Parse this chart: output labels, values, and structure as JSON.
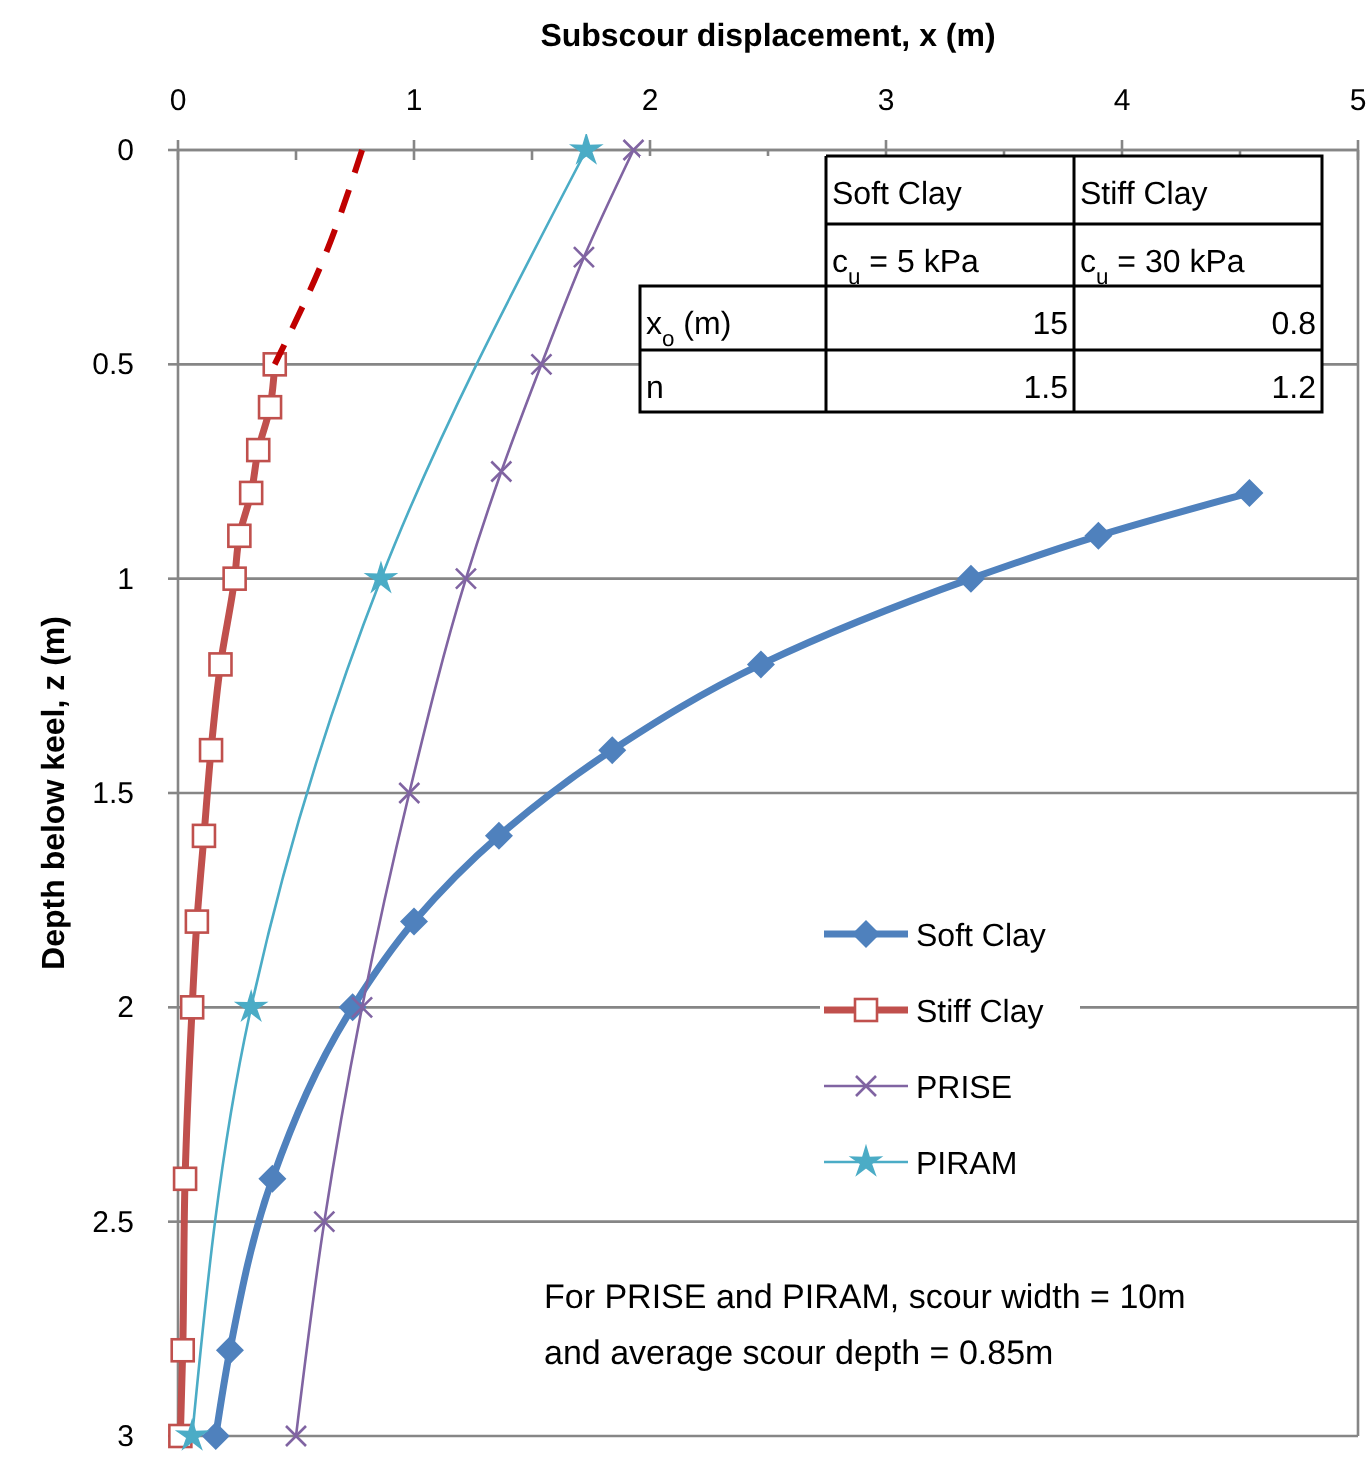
{
  "chart_data": {
    "type": "line",
    "xlabel": "Subscour displacement, x (m)",
    "ylabel": "Depth below keel, z (m)",
    "xlim": [
      0,
      5
    ],
    "xticks": [
      0,
      {
        "value": 0.5,
        "label": null
      },
      1,
      {
        "value": 1.5,
        "label": null
      },
      2,
      {
        "value": 2.5,
        "label": null
      },
      3,
      {
        "value": 3.5,
        "label": null
      },
      4,
      {
        "value": 4.5,
        "label": null
      },
      5
    ],
    "ylim": [
      3,
      0
    ],
    "yticks": [
      0,
      0.5,
      1,
      1.5,
      2,
      2.5,
      3
    ],
    "grid": "y",
    "legend": "right",
    "series": [
      {
        "name": "Soft Clay",
        "color": "#4f81bd",
        "marker": "diamond",
        "x": [
          4.54,
          3.9,
          3.36,
          2.47,
          1.84,
          1.36,
          1.0,
          0.74,
          0.4,
          0.22,
          0.16
        ],
        "values": [
          0.8,
          0.9,
          1.0,
          1.2,
          1.4,
          1.6,
          1.8,
          2.0,
          2.4,
          2.8,
          3.0
        ]
      },
      {
        "name": "Stiff Clay",
        "color": "#c0504d",
        "marker": "square",
        "x": [
          0.41,
          0.39,
          0.34,
          0.31,
          0.26,
          0.24,
          0.18,
          0.14,
          0.11,
          0.08,
          0.06,
          0.03,
          0.02,
          0.01
        ],
        "values": [
          0.5,
          0.6,
          0.7,
          0.8,
          0.9,
          1.0,
          1.2,
          1.4,
          1.6,
          1.8,
          2.0,
          2.4,
          2.8,
          3.0
        ]
      },
      {
        "color": "#c00000",
        "marker": "none",
        "line_style": "dashed",
        "x": [
          0.78,
          0.62,
          0.41
        ],
        "values": [
          0,
          0.25,
          0.5
        ]
      },
      {
        "name": "PRISE",
        "color": "#8064a2",
        "marker": "cross",
        "x": [
          1.93,
          1.72,
          1.54,
          1.37,
          1.22,
          0.98,
          0.78,
          0.62,
          0.5
        ],
        "values": [
          0,
          0.25,
          0.5,
          0.75,
          1.0,
          1.5,
          2.0,
          2.5,
          3.0
        ]
      },
      {
        "name": "PIRAM",
        "color": "#4bacc6",
        "marker": "star",
        "x": [
          1.73,
          0.86,
          0.31,
          0.06
        ],
        "values": [
          0,
          1.0,
          2.0,
          3.0
        ]
      }
    ],
    "annotations": [
      "For PRISE and PIRAM, scour width = 10m and average scour depth = 0.85m",
      "Soft Clay",
      "Stiff Clay",
      "c$_{u}$ = 5 kPa",
      "c$_{u}$ = 30 kPa",
      "x$_{o}$ (m)",
      "15",
      "0.8",
      "n",
      "1.5",
      "1.2"
    ]
  }
}
